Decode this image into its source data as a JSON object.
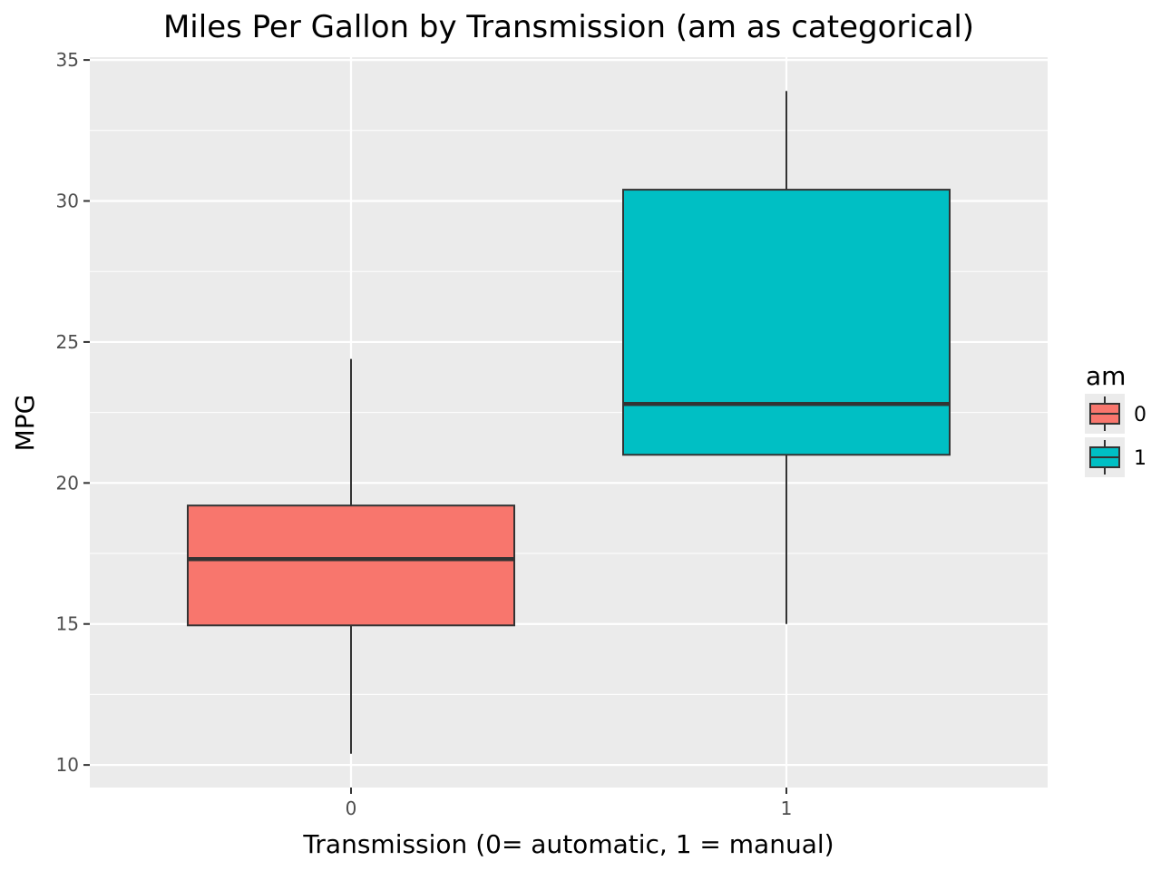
{
  "chart_data": {
    "type": "box",
    "title": "Miles Per Gallon by Transmission (am as categorical)",
    "xlabel": "Transmission (0= automatic, 1 = manual)",
    "ylabel": "MPG",
    "ylim": [
      9.2,
      35.1
    ],
    "yticks": [
      10,
      15,
      20,
      25,
      30,
      35
    ],
    "grid": true,
    "legend": {
      "title": "am",
      "position": "right"
    },
    "categories": [
      "0",
      "1"
    ],
    "series": [
      {
        "name": "0",
        "color": "#F8766D",
        "whisker_low": 10.4,
        "q1": 14.95,
        "median": 17.3,
        "q3": 19.2,
        "whisker_high": 24.4
      },
      {
        "name": "1",
        "color": "#00BFC4",
        "whisker_low": 15.0,
        "q1": 21.0,
        "median": 22.8,
        "q3": 30.4,
        "whisker_high": 33.9
      }
    ]
  }
}
